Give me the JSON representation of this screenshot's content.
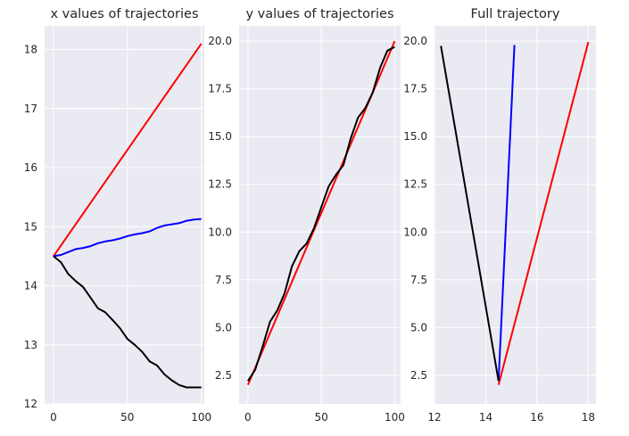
{
  "chart_data": [
    {
      "type": "line",
      "title": "x values of trajectories",
      "xlabel": "",
      "ylabel": "",
      "xlim": [
        -6,
        102
      ],
      "ylim": [
        12.0,
        18.4
      ],
      "xticks": [
        0,
        50,
        100
      ],
      "yticks": [
        12,
        13,
        14,
        15,
        16,
        17,
        18
      ],
      "ytick_labels": [
        "12",
        "13",
        "14",
        "15",
        "16",
        "17",
        "18"
      ],
      "xtick_labels": [
        "0",
        "50",
        "100"
      ],
      "grid": true,
      "series": [
        {
          "color": "#ff0000",
          "x": [
            0,
            100
          ],
          "y": [
            14.5,
            18.1
          ]
        },
        {
          "color": "#0000ff",
          "x": [
            0,
            5,
            10,
            15,
            20,
            25,
            30,
            35,
            40,
            45,
            50,
            55,
            60,
            65,
            70,
            75,
            80,
            85,
            90,
            95,
            100
          ],
          "y": [
            14.5,
            14.52,
            14.57,
            14.62,
            14.64,
            14.67,
            14.72,
            14.75,
            14.77,
            14.8,
            14.84,
            14.87,
            14.89,
            14.92,
            14.98,
            15.02,
            15.04,
            15.06,
            15.1,
            15.12,
            15.13
          ]
        },
        {
          "color": "#000000",
          "x": [
            0,
            5,
            10,
            15,
            20,
            25,
            30,
            35,
            40,
            45,
            50,
            55,
            60,
            65,
            70,
            75,
            80,
            85,
            90,
            95,
            100
          ],
          "y": [
            14.5,
            14.4,
            14.2,
            14.08,
            13.98,
            13.8,
            13.62,
            13.55,
            13.42,
            13.28,
            13.1,
            13.0,
            12.88,
            12.72,
            12.65,
            12.5,
            12.4,
            12.32,
            12.28,
            12.28,
            12.28
          ]
        }
      ]
    },
    {
      "type": "line",
      "title": "y values of trajectories",
      "xlabel": "",
      "ylabel": "",
      "xlim": [
        -6,
        104
      ],
      "ylim": [
        1.0,
        20.8
      ],
      "xticks": [
        0,
        50,
        100
      ],
      "yticks": [
        2.5,
        5.0,
        7.5,
        10.0,
        12.5,
        15.0,
        17.5,
        20.0
      ],
      "ytick_labels": [
        "2.5",
        "5.0",
        "7.5",
        "10.0",
        "12.5",
        "15.0",
        "17.5",
        "20.0"
      ],
      "xtick_labels": [
        "0",
        "50",
        "100"
      ],
      "grid": true,
      "series": [
        {
          "color": "#ff0000",
          "x": [
            0,
            100
          ],
          "y": [
            2.0,
            20.0
          ]
        },
        {
          "color": "#000000",
          "x": [
            0,
            5,
            10,
            15,
            20,
            25,
            30,
            35,
            40,
            45,
            50,
            55,
            60,
            65,
            70,
            75,
            80,
            85,
            90,
            95,
            100
          ],
          "y": [
            2.2,
            2.8,
            4.0,
            5.3,
            5.9,
            6.8,
            8.2,
            9.0,
            9.4,
            10.2,
            11.3,
            12.4,
            13.0,
            13.5,
            14.9,
            16.0,
            16.5,
            17.3,
            18.6,
            19.5,
            19.7
          ]
        }
      ]
    },
    {
      "type": "line",
      "title": "Full trajectory",
      "xlabel": "",
      "ylabel": "",
      "xlim": [
        12.0,
        18.3
      ],
      "ylim": [
        1.0,
        20.8
      ],
      "xticks": [
        12,
        14,
        16,
        18
      ],
      "yticks": [
        2.5,
        5.0,
        7.5,
        10.0,
        12.5,
        15.0,
        17.5,
        20.0
      ],
      "ytick_labels": [
        "2.5",
        "5.0",
        "7.5",
        "10.0",
        "12.5",
        "15.0",
        "17.5",
        "20.0"
      ],
      "xtick_labels": [
        "12",
        "14",
        "16",
        "18"
      ],
      "grid": true,
      "series": [
        {
          "color": "#ff0000",
          "x": [
            14.5,
            18.0
          ],
          "y": [
            2.0,
            19.95
          ]
        },
        {
          "color": "#0000ff",
          "x": [
            14.5,
            15.12
          ],
          "y": [
            2.2,
            19.8
          ]
        },
        {
          "color": "#000000",
          "x": [
            14.5,
            12.25
          ],
          "y": [
            2.2,
            19.75
          ]
        }
      ]
    }
  ]
}
